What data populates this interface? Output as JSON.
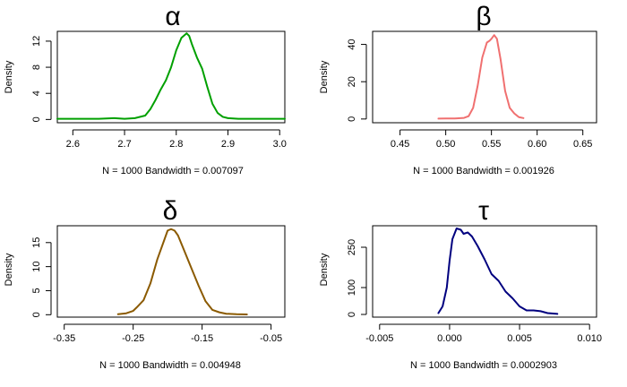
{
  "chart_data": [
    {
      "type": "line",
      "title": "α",
      "xlabel": "N = 1000   Bandwidth = 0.007097",
      "ylabel": "Density",
      "color": "#00a000",
      "xlim": [
        2.57,
        3.01
      ],
      "ylim": [
        -0.5,
        13.5
      ],
      "xticks": [
        2.6,
        2.7,
        2.8,
        2.9,
        3.0
      ],
      "xtick_labels": [
        "2.6",
        "2.7",
        "2.8",
        "2.9",
        "3.0"
      ],
      "yticks": [
        0,
        4,
        8,
        12
      ],
      "ytick_labels": [
        "0",
        "4",
        "8",
        "12"
      ],
      "series": [
        {
          "x": [
            2.57,
            2.6,
            2.65,
            2.68,
            2.7,
            2.72,
            2.74,
            2.75,
            2.76,
            2.77,
            2.78,
            2.79,
            2.8,
            2.81,
            2.82,
            2.825,
            2.83,
            2.84,
            2.85,
            2.86,
            2.87,
            2.88,
            2.89,
            2.9,
            2.92,
            2.95,
            3.01
          ],
          "y": [
            0.1,
            0.1,
            0.1,
            0.2,
            0.1,
            0.2,
            0.6,
            1.6,
            3.0,
            4.6,
            6.0,
            8.0,
            10.6,
            12.5,
            13.2,
            12.8,
            11.6,
            9.5,
            7.8,
            5.0,
            2.4,
            1.0,
            0.4,
            0.2,
            0.1,
            0.1,
            0.1
          ]
        }
      ]
    },
    {
      "type": "line",
      "title": "β",
      "xlabel": "N = 1000   Bandwidth = 0.001926",
      "ylabel": "Density",
      "color": "#f07070",
      "xlim": [
        0.42,
        0.665
      ],
      "ylim": [
        -2,
        47
      ],
      "xticks": [
        0.45,
        0.5,
        0.55,
        0.6,
        0.65
      ],
      "xtick_labels": [
        "0.45",
        "0.50",
        "0.55",
        "0.60",
        "0.65"
      ],
      "yticks": [
        0,
        20,
        40
      ],
      "ytick_labels": [
        "0",
        "20",
        "40"
      ],
      "series": [
        {
          "x": [
            0.492,
            0.5,
            0.51,
            0.52,
            0.525,
            0.53,
            0.535,
            0.54,
            0.545,
            0.548,
            0.55,
            0.553,
            0.556,
            0.56,
            0.565,
            0.57,
            0.575,
            0.58,
            0.585
          ],
          "y": [
            0.2,
            0.3,
            0.3,
            0.6,
            1.5,
            6,
            18,
            33,
            41,
            42,
            43,
            45,
            43,
            32,
            15,
            6,
            3,
            1,
            0.5
          ]
        }
      ]
    },
    {
      "type": "line",
      "title": "δ",
      "xlabel": "N = 1000   Bandwidth = 0.004948",
      "ylabel": "Density",
      "color": "#8b5a00",
      "xlim": [
        -0.36,
        -0.03
      ],
      "ylim": [
        -0.5,
        18.5
      ],
      "xticks": [
        -0.35,
        -0.25,
        -0.15,
        -0.05
      ],
      "xtick_labels": [
        "-0.35",
        "-0.25",
        "-0.15",
        "-0.05"
      ],
      "yticks": [
        0,
        5,
        10,
        15
      ],
      "ytick_labels": [
        "0",
        "5",
        "10",
        "15"
      ],
      "series": [
        {
          "x": [
            -0.272,
            -0.26,
            -0.25,
            -0.245,
            -0.235,
            -0.225,
            -0.215,
            -0.205,
            -0.2,
            -0.195,
            -0.19,
            -0.185,
            -0.175,
            -0.165,
            -0.155,
            -0.145,
            -0.135,
            -0.125,
            -0.115,
            -0.1,
            -0.085
          ],
          "y": [
            0.1,
            0.3,
            0.8,
            1.5,
            3.0,
            6.5,
            11.5,
            15.5,
            17.5,
            17.8,
            17.5,
            16.5,
            13.0,
            9.5,
            6.0,
            2.8,
            1.0,
            0.5,
            0.2,
            0.1,
            0.05
          ]
        }
      ]
    },
    {
      "type": "line",
      "title": "τ",
      "xlabel": "N = 1000   Bandwidth = 0.0002903",
      "ylabel": "Density",
      "color": "#00007f",
      "xlim": [
        -0.0055,
        0.0105
      ],
      "ylim": [
        -10,
        330
      ],
      "xticks": [
        -0.005,
        0.0,
        0.005,
        0.01
      ],
      "xtick_labels": [
        "-0.005",
        "0.000",
        "0.005",
        "0.010"
      ],
      "yticks": [
        0,
        100,
        250
      ],
      "ytick_labels": [
        "0",
        "100",
        "250"
      ],
      "series": [
        {
          "x": [
            -0.0008,
            -0.0005,
            -0.0002,
            0.0,
            0.0002,
            0.0005,
            0.0008,
            0.001,
            0.0013,
            0.0016,
            0.002,
            0.0025,
            0.003,
            0.0035,
            0.004,
            0.0045,
            0.005,
            0.0055,
            0.006,
            0.0065,
            0.007,
            0.0077
          ],
          "y": [
            5,
            30,
            100,
            200,
            280,
            320,
            315,
            300,
            305,
            290,
            255,
            205,
            150,
            125,
            85,
            60,
            30,
            15,
            15,
            12,
            5,
            2
          ]
        }
      ]
    }
  ]
}
